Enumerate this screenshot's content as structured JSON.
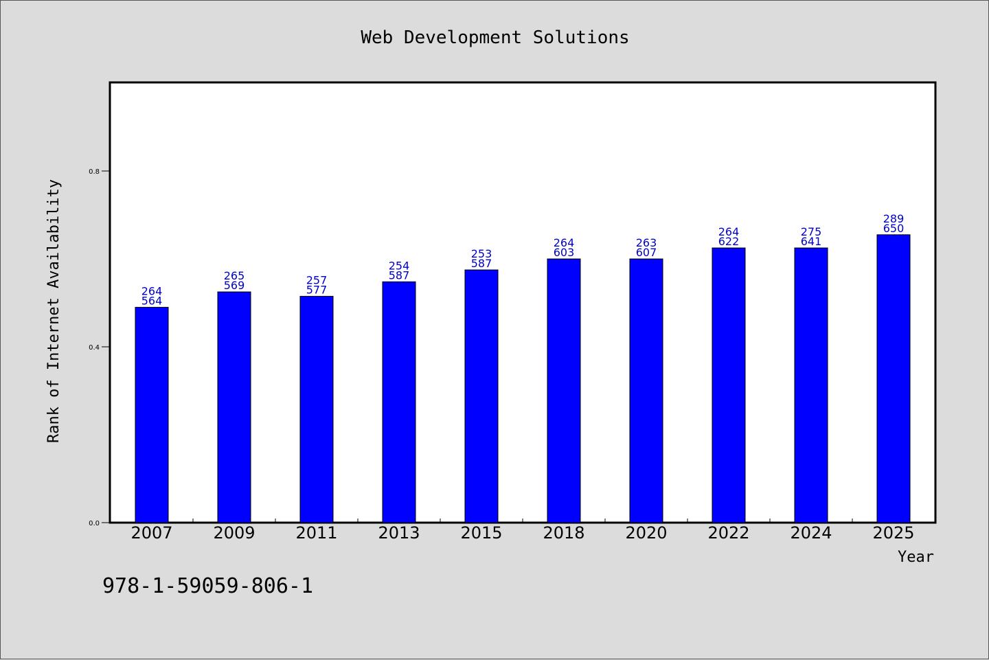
{
  "chart_data": {
    "type": "bar",
    "title": "Web Development Solutions",
    "xlabel": "Year",
    "ylabel": "Rank of Internet Availability",
    "categories": [
      "2007",
      "2009",
      "2011",
      "2013",
      "2015",
      "2018",
      "2020",
      "2022",
      "2024",
      "2025"
    ],
    "values": [
      0.49,
      0.525,
      0.515,
      0.548,
      0.575,
      0.6,
      0.6,
      0.625,
      0.625,
      0.655
    ],
    "labels_top": [
      "264",
      "265",
      "257",
      "254",
      "253",
      "264",
      "263",
      "264",
      "275",
      "289"
    ],
    "labels_bottom": [
      "564",
      "569",
      "577",
      "587",
      "587",
      "603",
      "607",
      "622",
      "641",
      "650"
    ],
    "yticks": [
      0.0,
      0.4,
      0.8
    ],
    "ytick_labels": [
      "0.0",
      "0.4",
      "0.8"
    ],
    "ylim": [
      0.0,
      1.0
    ],
    "grid": false,
    "bar_color": "#0000ff",
    "label_color": "#0000cc"
  },
  "footer": {
    "isbn": "978-1-59059-806-1"
  }
}
